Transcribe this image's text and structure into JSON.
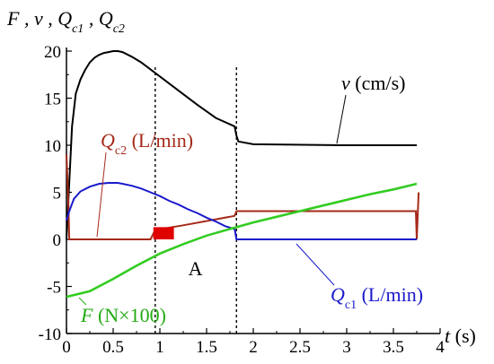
{
  "chart_data": {
    "type": "line",
    "ylabel": "F , v , Q_c1 , Q_c2",
    "xlabel": "t (s)",
    "xlim": [
      0,
      4
    ],
    "ylim": [
      -10,
      20
    ],
    "x_ticks": [
      "0",
      "0.5",
      "1",
      "1.5",
      "2",
      "2.5",
      "3",
      "3.5",
      "4"
    ],
    "y_ticks": [
      "20",
      "15",
      "10",
      "5",
      "0",
      "-5",
      "-10"
    ],
    "grid": false,
    "vlines": [
      0.95,
      1.82
    ],
    "series": [
      {
        "name": "v",
        "unit": "(cm/s)",
        "color": "#000000",
        "x": [
          0,
          0.03,
          0.06,
          0.1,
          0.15,
          0.2,
          0.25,
          0.3,
          0.35,
          0.4,
          0.45,
          0.5,
          0.55,
          0.6,
          0.7,
          0.8,
          1.0,
          1.2,
          1.4,
          1.6,
          1.8,
          1.82,
          1.84,
          2.0,
          3.0,
          3.75
        ],
        "y": [
          0,
          6,
          12,
          15.5,
          17,
          18,
          18.8,
          19.3,
          19.6,
          19.8,
          19.9,
          20,
          20,
          19.9,
          19.4,
          18.8,
          17.3,
          15.8,
          14.3,
          12.9,
          12.0,
          11.0,
          10.4,
          10.1,
          10,
          10
        ]
      },
      {
        "name": "Q_c2",
        "unit": "(L/min)",
        "color": "#a52a1a",
        "x": [
          0,
          0.02,
          0.03,
          0.04,
          0.9,
          0.95,
          1.25,
          1.8,
          1.82,
          3.74,
          3.75,
          3.77
        ],
        "y": [
          9,
          4,
          0,
          0,
          0,
          1,
          1.5,
          2.5,
          3,
          3,
          0,
          5
        ]
      },
      {
        "name": "Q_c1",
        "unit": "(L/min)",
        "color": "#1a1acc",
        "x": [
          0,
          0.03,
          0.08,
          0.15,
          0.25,
          0.35,
          0.45,
          0.5,
          0.55,
          0.6,
          0.7,
          0.8,
          0.9,
          1.0,
          1.1,
          1.2,
          1.3,
          1.4,
          1.5,
          1.6,
          1.7,
          1.8,
          1.82,
          1.83,
          3.75
        ],
        "y": [
          2,
          3,
          4.3,
          5.1,
          5.6,
          5.9,
          6.0,
          6.0,
          6.0,
          5.9,
          5.7,
          5.4,
          5.0,
          4.6,
          4.1,
          3.7,
          3.2,
          2.8,
          2.3,
          1.9,
          1.4,
          1.1,
          0,
          0,
          0
        ]
      },
      {
        "name": "F",
        "unit": "(N×100)",
        "color": "#33cc22",
        "x": [
          0,
          0.25,
          0.5,
          0.75,
          1.0,
          1.25,
          1.5,
          1.75,
          2.0,
          2.25,
          2.5,
          2.75,
          3.0,
          3.25,
          3.5,
          3.75
        ],
        "y": [
          -6.1,
          -5.5,
          -4.2,
          -2.8,
          -1.5,
          -0.5,
          0.4,
          1.1,
          1.8,
          2.4,
          3.0,
          3.6,
          4.2,
          4.8,
          5.3,
          5.9
        ]
      }
    ],
    "annotations": [
      {
        "text": "A",
        "x": 1.38,
        "y": -3.8
      }
    ]
  }
}
